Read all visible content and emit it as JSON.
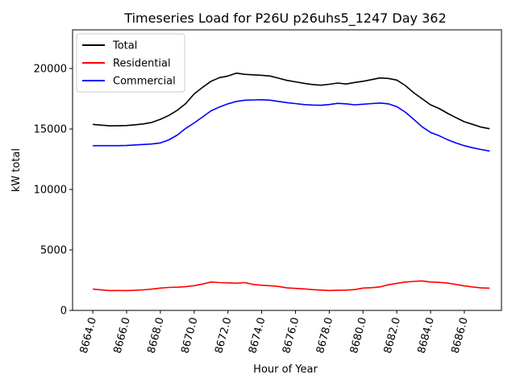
{
  "chart_data": {
    "type": "line",
    "title": "Timeseries Load for P26U p26uhs5_1247  Day 362",
    "xlabel": "Hour of Year",
    "ylabel": "kW total",
    "xlim": [
      8662.8,
      8688.2
    ],
    "ylim": [
      0,
      23200
    ],
    "grid": false,
    "legend_position": "top-left",
    "x_ticks": [
      8664,
      8666,
      8668,
      8670,
      8672,
      8674,
      8676,
      8678,
      8680,
      8682,
      8684,
      8686
    ],
    "x_tick_labels": [
      "8664.0",
      "8666.0",
      "8668.0",
      "8670.0",
      "8672.0",
      "8674.0",
      "8676.0",
      "8678.0",
      "8680.0",
      "8682.0",
      "8684.0",
      "8686.0"
    ],
    "y_ticks": [
      0,
      5000,
      10000,
      15000,
      20000
    ],
    "y_tick_labels": [
      "0",
      "5000",
      "10000",
      "15000",
      "20000"
    ],
    "x": [
      8664.0,
      8664.5,
      8665.0,
      8665.5,
      8666.0,
      8666.5,
      8667.0,
      8667.5,
      8668.0,
      8668.5,
      8669.0,
      8669.5,
      8670.0,
      8670.5,
      8671.0,
      8671.5,
      8672.0,
      8672.5,
      8673.0,
      8673.5,
      8674.0,
      8674.5,
      8675.0,
      8675.5,
      8676.0,
      8676.5,
      8677.0,
      8677.5,
      8678.0,
      8678.5,
      8679.0,
      8679.5,
      8680.0,
      8680.5,
      8681.0,
      8681.5,
      8682.0,
      8682.5,
      8683.0,
      8683.5,
      8684.0,
      8684.5,
      8685.0,
      8685.5,
      8686.0,
      8686.5,
      8687.0,
      8687.5
    ],
    "series": [
      {
        "name": "Total",
        "color": "#000000",
        "values": [
          15380,
          15320,
          15260,
          15270,
          15290,
          15350,
          15420,
          15550,
          15800,
          16120,
          16550,
          17100,
          17900,
          18450,
          18950,
          19250,
          19380,
          19620,
          19520,
          19480,
          19440,
          19380,
          19200,
          19020,
          18900,
          18780,
          18680,
          18620,
          18700,
          18800,
          18720,
          18850,
          18950,
          19080,
          19220,
          19180,
          19050,
          18600,
          18000,
          17500,
          17000,
          16700,
          16300,
          15950,
          15600,
          15380,
          15150,
          15020
        ]
      },
      {
        "name": "Residential",
        "color": "#ff0000",
        "values": [
          1760,
          1690,
          1640,
          1650,
          1640,
          1660,
          1700,
          1760,
          1850,
          1900,
          1920,
          1960,
          2050,
          2180,
          2350,
          2300,
          2280,
          2250,
          2300,
          2150,
          2080,
          2040,
          1980,
          1860,
          1820,
          1780,
          1720,
          1680,
          1650,
          1660,
          1680,
          1720,
          1850,
          1880,
          1940,
          2120,
          2240,
          2350,
          2400,
          2440,
          2350,
          2320,
          2260,
          2150,
          2030,
          1940,
          1860,
          1840
        ]
      },
      {
        "name": "Commercial",
        "color": "#0000ff",
        "values": [
          13620,
          13620,
          13620,
          13620,
          13640,
          13680,
          13720,
          13760,
          13850,
          14100,
          14500,
          15050,
          15500,
          16000,
          16500,
          16820,
          17080,
          17280,
          17380,
          17400,
          17420,
          17380,
          17280,
          17180,
          17100,
          17020,
          16980,
          16960,
          17020,
          17120,
          17080,
          17000,
          17050,
          17100,
          17150,
          17080,
          16850,
          16400,
          15800,
          15180,
          14720,
          14450,
          14120,
          13850,
          13620,
          13450,
          13300,
          13180
        ]
      }
    ]
  }
}
